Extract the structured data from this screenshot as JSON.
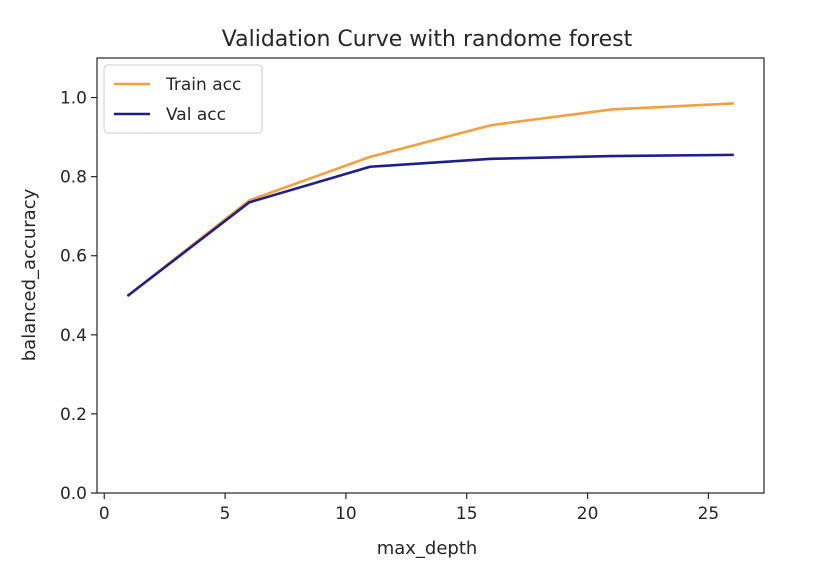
{
  "chart_data": {
    "type": "line",
    "title": "Validation Curve with randome forest",
    "xlabel": "max_depth",
    "ylabel": "balanced_accuracy",
    "xlim": [
      -0.3,
      27.3
    ],
    "ylim": [
      0.0,
      1.1
    ],
    "xticks": [
      0,
      5,
      10,
      15,
      20,
      25
    ],
    "yticks": [
      0.0,
      0.2,
      0.4,
      0.6,
      0.8,
      1.0
    ],
    "xtick_labels": [
      "0",
      "5",
      "10",
      "15",
      "20",
      "25"
    ],
    "ytick_labels": [
      "0.0",
      "0.2",
      "0.4",
      "0.6",
      "0.8",
      "1.0"
    ],
    "grid": false,
    "legend_position": "top-left",
    "x": [
      1,
      6,
      11,
      16,
      21,
      26
    ],
    "series": [
      {
        "name": "Train acc",
        "color": "#f2a142",
        "values": [
          0.5,
          0.74,
          0.85,
          0.93,
          0.97,
          0.985
        ]
      },
      {
        "name": "Val acc",
        "color": "#1f1f8a",
        "values": [
          0.5,
          0.735,
          0.825,
          0.845,
          0.852,
          0.855
        ]
      }
    ]
  }
}
